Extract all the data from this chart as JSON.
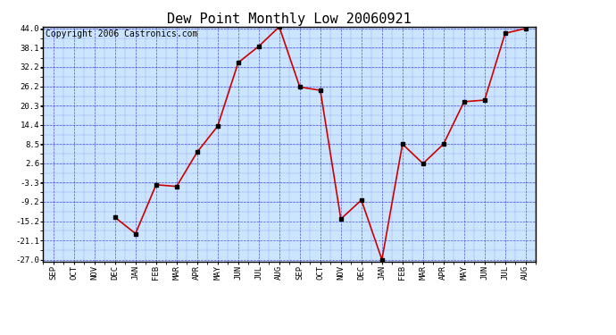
{
  "title": "Dew Point Monthly Low 20060921",
  "copyright": "Copyright 2006 Castronics.com",
  "x_labels": [
    "SEP",
    "OCT",
    "NOV",
    "DEC",
    "JAN",
    "FEB",
    "MAR",
    "APR",
    "MAY",
    "JUN",
    "JUL",
    "AUG",
    "SEP",
    "OCT",
    "NOV",
    "DEC",
    "JAN",
    "FEB",
    "MAR",
    "APR",
    "MAY",
    "JUN",
    "JUL",
    "AUG"
  ],
  "y_values": [
    null,
    null,
    null,
    -14.0,
    -19.0,
    -4.0,
    -4.5,
    6.0,
    14.0,
    33.5,
    38.5,
    44.5,
    26.0,
    25.0,
    -14.5,
    -8.7,
    -27.0,
    8.5,
    2.5,
    8.5,
    21.5,
    22.0,
    42.5,
    44.0
  ],
  "yticks": [
    44.0,
    38.1,
    32.2,
    26.2,
    20.3,
    14.4,
    8.5,
    2.6,
    -3.3,
    -9.2,
    -15.2,
    -21.1,
    -27.0
  ],
  "ymin": -27.0,
  "ymax": 44.0,
  "line_color": "#cc0000",
  "marker_color": "#000000",
  "bg_color": "#cce5ff",
  "grid_color": "#3333cc",
  "title_fontsize": 11,
  "copyright_fontsize": 7
}
